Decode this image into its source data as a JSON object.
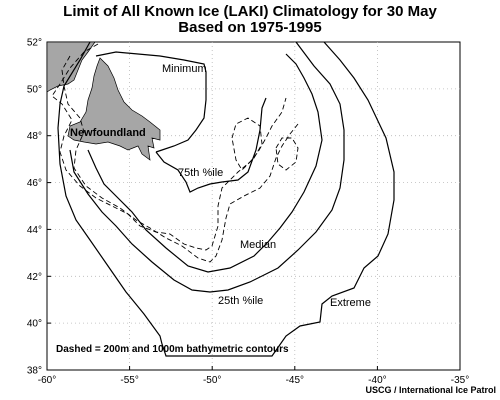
{
  "title": {
    "line1": "Limit of All Known Ice (LAKI) Climatology for 30 May",
    "line2": "Based on 1975-1995"
  },
  "axes": {
    "x_ticks": [
      "-60°",
      "-55°",
      "-50°",
      "-45°",
      "-40°",
      "-35°"
    ],
    "y_ticks": [
      "38°",
      "40°",
      "42°",
      "44°",
      "46°",
      "48°",
      "50°",
      "52°"
    ]
  },
  "contours": {
    "minimum": "Minimum",
    "p75": "75th %ile",
    "median": "Median",
    "p25": "25th %ile",
    "extreme": "Extreme"
  },
  "places": {
    "newfoundland": "Newfoundland"
  },
  "note": "Dashed = 200m and 1000m bathymetric contours",
  "credit": "USCG / International Ice Patrol",
  "colors": {
    "land": "#a6a6a6",
    "line": "#000000",
    "grid": "#b8b8b8"
  }
}
